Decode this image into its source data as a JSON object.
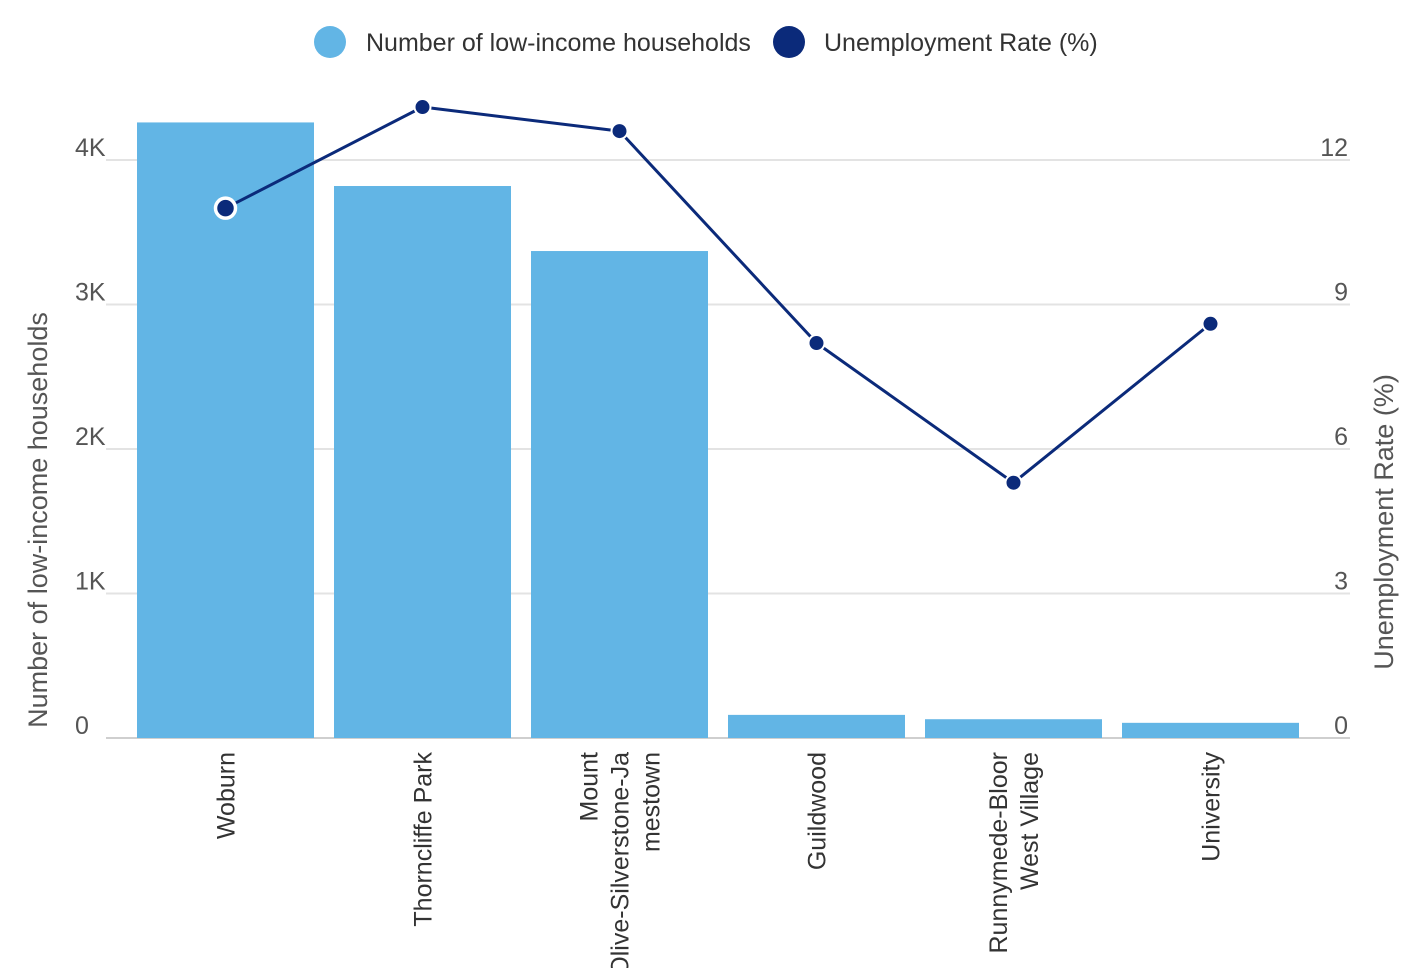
{
  "chart_data": {
    "type": "bar",
    "categories": [
      [
        "Woburn"
      ],
      [
        "Thorncliffe Park"
      ],
      [
        "Mount",
        "Olive-Silverstone-Ja",
        "mestown"
      ],
      [
        "Guildwood"
      ],
      [
        "Runnymede-Bloor",
        "West Village"
      ],
      [
        "University"
      ]
    ],
    "series": [
      {
        "name": "Number of low-income households",
        "chart": "bar",
        "axis": "left",
        "color": "#62b5e5",
        "values": [
          4260,
          3820,
          3370,
          160,
          130,
          105
        ]
      },
      {
        "name": "Unemployment Rate (%)",
        "chart": "line",
        "axis": "right",
        "color": "#0b2a7a",
        "values": [
          11.0,
          13.1,
          12.6,
          8.2,
          5.3,
          8.6
        ]
      }
    ],
    "y_left": {
      "label": "Number of low-income households",
      "min": 0,
      "max": 4000,
      "ticks": [
        {
          "value": 0,
          "label": "0"
        },
        {
          "value": 1000,
          "label": "1K"
        },
        {
          "value": 2000,
          "label": "2K"
        },
        {
          "value": 3000,
          "label": "3K"
        },
        {
          "value": 4000,
          "label": "4K"
        }
      ]
    },
    "y_right": {
      "label": "Unemployment Rate (%)",
      "min": 0,
      "max": 12,
      "ticks": [
        {
          "value": 0,
          "label": "0"
        },
        {
          "value": 3,
          "label": "3"
        },
        {
          "value": 6,
          "label": "6"
        },
        {
          "value": 9,
          "label": "9"
        },
        {
          "value": 12,
          "label": "12"
        }
      ]
    },
    "grid": true,
    "legend_position": "top-center",
    "highlighted_point": {
      "series": 1,
      "index": 0
    }
  }
}
